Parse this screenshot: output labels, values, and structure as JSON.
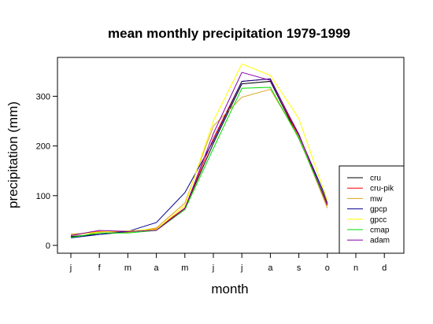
{
  "chart_data": {
    "type": "line",
    "title": "mean monthly precipitation 1979-1999",
    "xlabel": "month",
    "ylabel": "precipitation (mm)",
    "categories": [
      "j",
      "f",
      "m",
      "a",
      "m",
      "j",
      "j",
      "a",
      "s",
      "o",
      "n",
      "d"
    ],
    "ylim": [
      -10,
      380
    ],
    "yticks": [
      0,
      100,
      200,
      300
    ],
    "grid": false,
    "legend_position": "bottom-right",
    "series": [
      {
        "name": "cru",
        "color": "#000000",
        "values": [
          18,
          22,
          27,
          32,
          75,
          205,
          325,
          330,
          215,
          85,
          null,
          null
        ]
      },
      {
        "name": "cru-pik",
        "color": "#ff0000",
        "values": [
          20,
          28,
          27,
          33,
          75,
          215,
          330,
          335,
          218,
          80,
          null,
          null
        ]
      },
      {
        "name": "mw",
        "color": "#daa520",
        "values": [
          23,
          25,
          26,
          35,
          85,
          240,
          298,
          314,
          218,
          75,
          null,
          null
        ]
      },
      {
        "name": "gpcp",
        "color": "#00008b",
        "values": [
          15,
          22,
          28,
          46,
          106,
          210,
          330,
          335,
          222,
          90,
          null,
          null
        ]
      },
      {
        "name": "gpcc",
        "color": "#ffff00",
        "values": [
          21,
          27,
          29,
          32,
          80,
          250,
          365,
          342,
          255,
          90,
          null,
          null
        ]
      },
      {
        "name": "cmap",
        "color": "#00dd00",
        "values": [
          16,
          25,
          25,
          30,
          72,
          195,
          316,
          318,
          215,
          82,
          null,
          null
        ]
      },
      {
        "name": "adam",
        "color": "#8800aa",
        "values": [
          20,
          30,
          28,
          30,
          74,
          225,
          348,
          332,
          224,
          82,
          null,
          null
        ]
      }
    ]
  }
}
